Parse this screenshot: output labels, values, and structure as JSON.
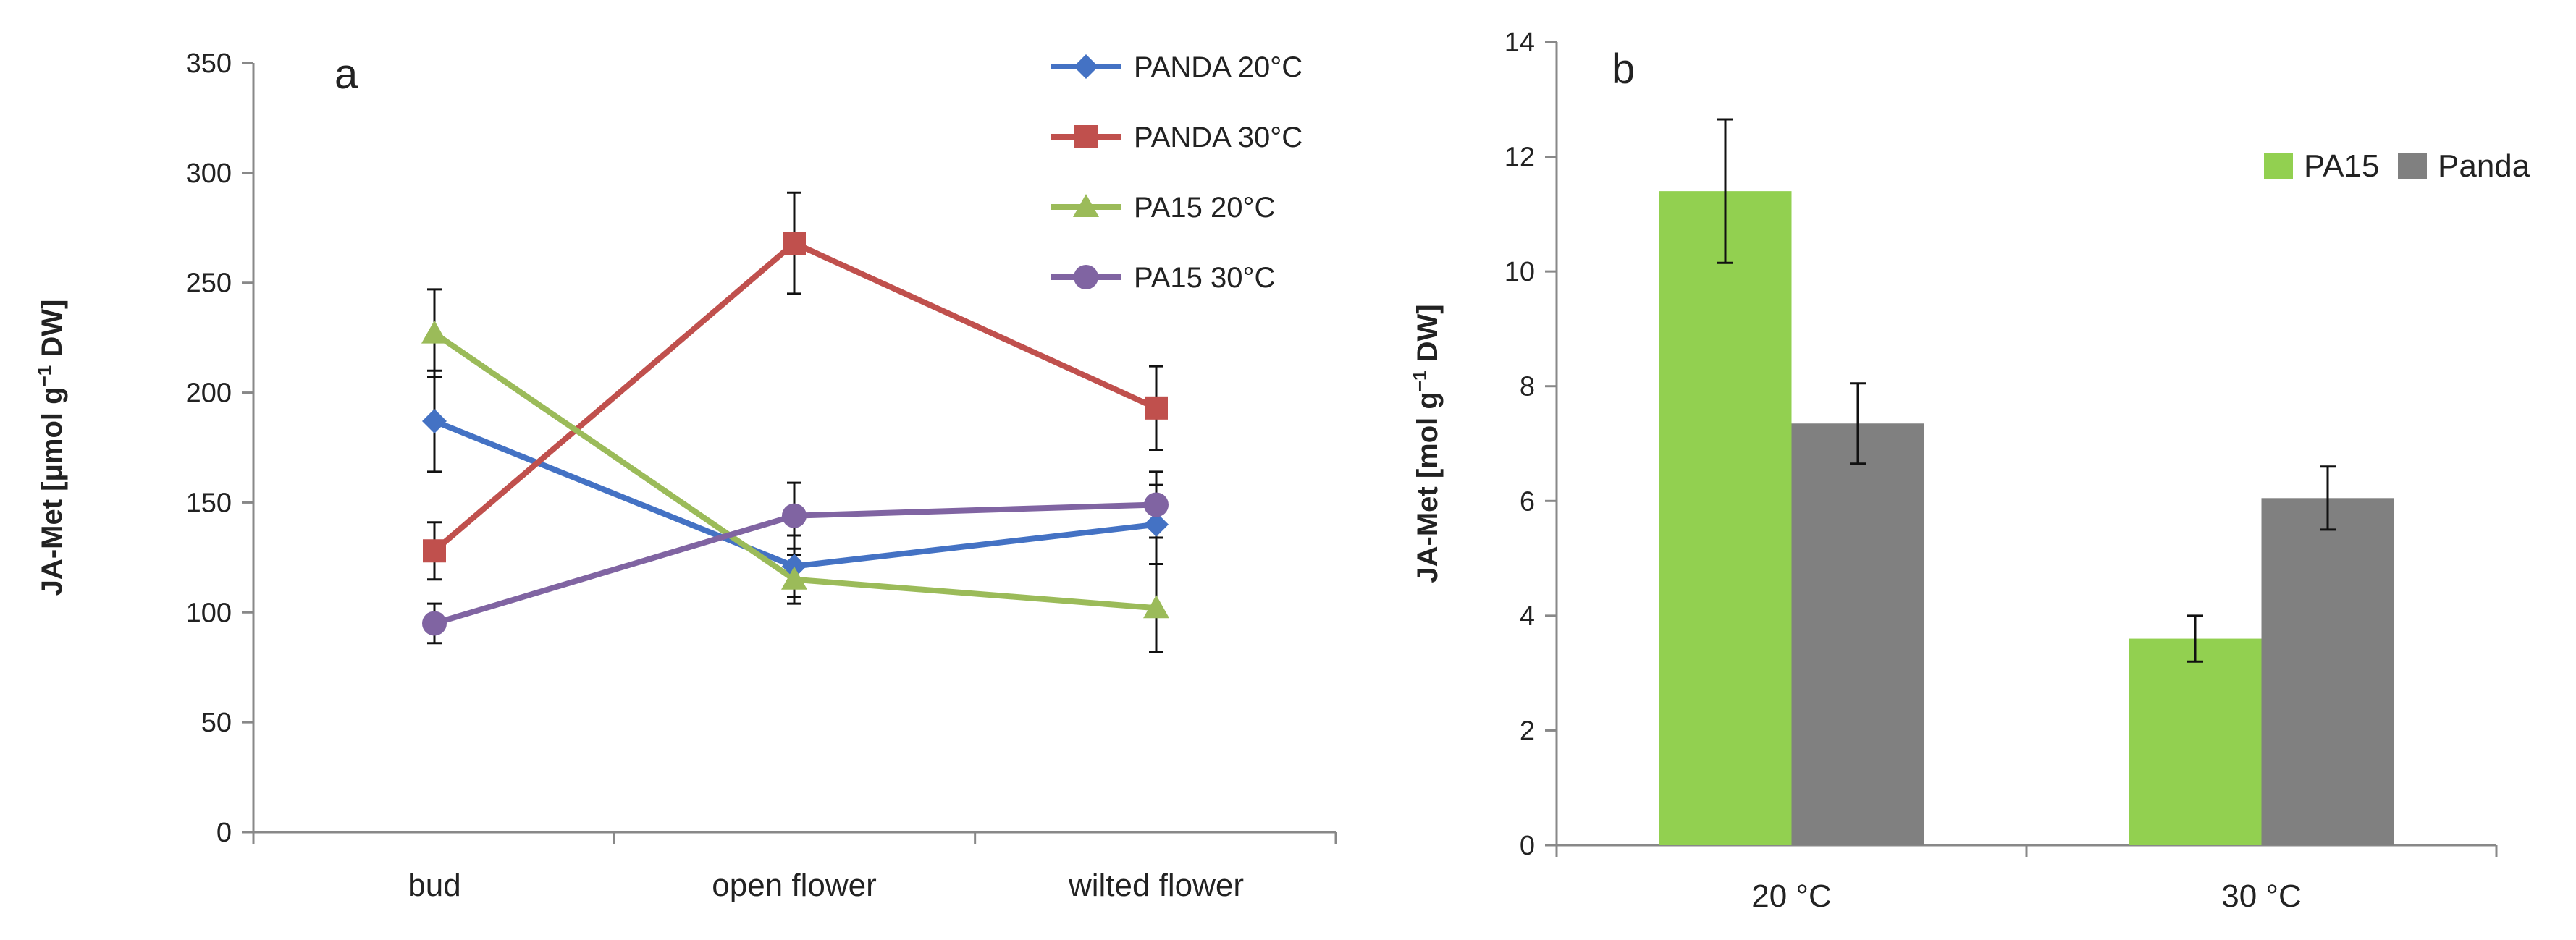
{
  "chart_data": [
    {
      "type": "line",
      "panel_label": "a",
      "ylabel_main": "JA-Met [μmol g",
      "ylabel_sup": "−1",
      "ylabel_tail": " DW]",
      "xlabel": "",
      "ylim": [
        0,
        350
      ],
      "yticks": [
        0,
        50,
        100,
        150,
        200,
        250,
        300,
        350
      ],
      "categories": [
        "bud",
        "open flower",
        "wilted flower"
      ],
      "legend_position": "top-right",
      "series": [
        {
          "name": "PANDA 20°C",
          "color": "#4472C4",
          "marker": "diamond",
          "values": [
            187,
            121,
            140
          ],
          "errors": [
            23,
            14,
            18
          ]
        },
        {
          "name": "PANDA 30°C",
          "color": "#C0504D",
          "marker": "square",
          "values": [
            128,
            268,
            193
          ],
          "errors": [
            13,
            23,
            19
          ]
        },
        {
          "name": "PA15 20°C",
          "color": "#9BBB59",
          "marker": "triangle",
          "values": [
            227,
            115,
            102
          ],
          "errors": [
            20,
            11,
            20
          ]
        },
        {
          "name": "PA15 30°C",
          "color": "#8064A2",
          "marker": "circle",
          "values": [
            95,
            144,
            149
          ],
          "errors": [
            9,
            15,
            15
          ]
        }
      ]
    },
    {
      "type": "bar",
      "panel_label": "b",
      "ylabel_main": "JA-Met [mol g",
      "ylabel_sup": "−1",
      "ylabel_tail": " DW]",
      "xlabel": "",
      "ylim": [
        0,
        14
      ],
      "yticks": [
        0,
        2,
        4,
        6,
        8,
        10,
        12,
        14
      ],
      "categories": [
        "20 °C",
        "30 °C"
      ],
      "legend_position": "top-right",
      "series": [
        {
          "name": "PA15",
          "color": "#92D050",
          "values": [
            11.4,
            3.6
          ],
          "errors": [
            1.25,
            0.4
          ]
        },
        {
          "name": "Panda",
          "color": "#808080",
          "values": [
            7.35,
            6.05
          ],
          "errors": [
            0.7,
            0.55
          ]
        }
      ]
    }
  ]
}
